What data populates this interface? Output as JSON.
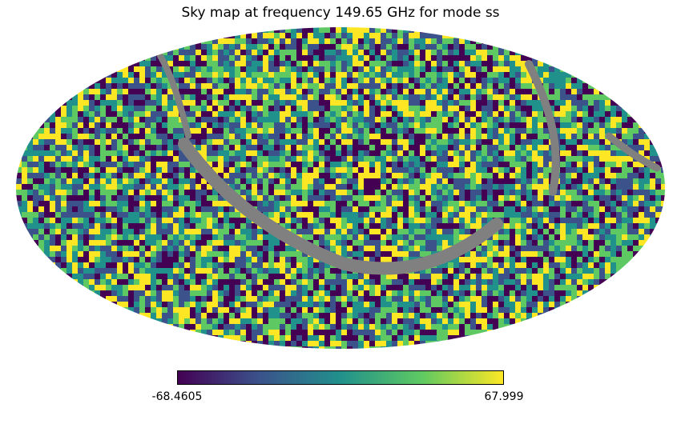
{
  "title": "Sky map at frequency 149.65 GHz for mode ss",
  "colorbar": {
    "min_label": "-68.4605",
    "max_label": "67.999",
    "colormap": "viridis",
    "stops": [
      "#440154",
      "#3b528b",
      "#21918c",
      "#5ec962",
      "#fde725"
    ]
  },
  "map": {
    "projection": "mollweide",
    "masked_color": "#808080"
  }
}
